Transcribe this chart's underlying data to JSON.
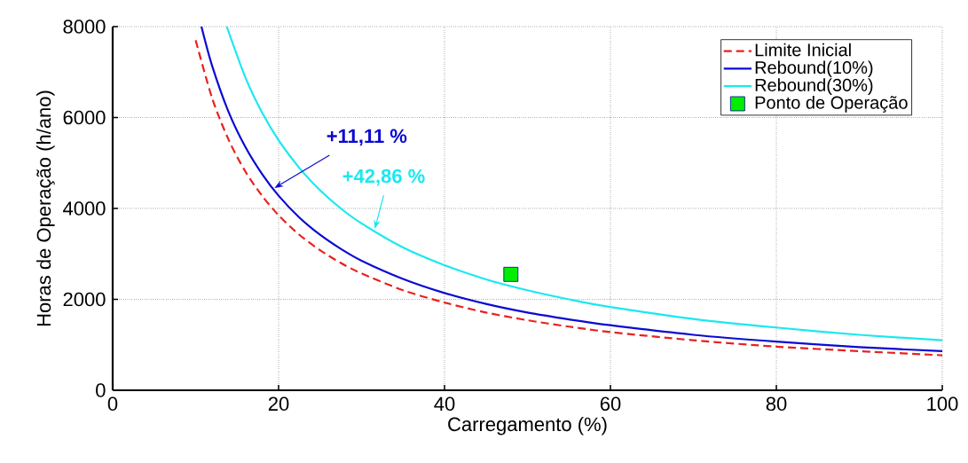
{
  "chart_data": {
    "type": "line",
    "xlabel": "Carregamento (%)",
    "ylabel": "Horas de Operação (h/ano)",
    "xlim": [
      0,
      100
    ],
    "ylim": [
      0,
      8000
    ],
    "xticks": [
      0,
      20,
      40,
      60,
      80,
      100
    ],
    "yticks": [
      0,
      2000,
      4000,
      6000,
      8000
    ],
    "grid": true,
    "legend": "top right",
    "series": [
      {
        "name": "Limite Inicial",
        "color": "#e8221e",
        "line_style": "dashed",
        "marker": "none",
        "x": [
          10,
          12,
          14,
          16,
          18,
          20,
          22.5,
          25,
          27.5,
          30,
          35,
          40,
          45,
          50,
          55,
          60,
          70,
          80,
          90,
          100
        ],
        "values": [
          7700,
          6420,
          5500,
          4810,
          4280,
          3850,
          3420,
          3080,
          2800,
          2570,
          2200,
          1930,
          1710,
          1540,
          1400,
          1280,
          1100,
          960,
          860,
          770
        ]
      },
      {
        "name": "Rebound(10%)",
        "color": "#0a0ad2",
        "line_style": "solid",
        "marker": "none",
        "x": [
          10.7,
          12,
          14,
          16,
          18,
          20,
          22.5,
          25,
          27.5,
          30,
          35,
          40,
          45,
          50,
          55,
          60,
          70,
          80,
          90,
          100
        ],
        "values": [
          8000,
          7130,
          6110,
          5350,
          4760,
          4280,
          3800,
          3420,
          3110,
          2850,
          2450,
          2140,
          1900,
          1710,
          1560,
          1430,
          1220,
          1070,
          950,
          860
        ]
      },
      {
        "name": "Rebound(30%)",
        "color": "#1ae8f0",
        "line_style": "solid",
        "marker": "none",
        "x": [
          13.75,
          16,
          18,
          20,
          22.5,
          25,
          27.5,
          30,
          35,
          40,
          45,
          50,
          55,
          60,
          70,
          80,
          90,
          100
        ],
        "values": [
          8000,
          6880,
          6110,
          5500,
          4890,
          4400,
          4000,
          3670,
          3140,
          2750,
          2440,
          2200,
          2000,
          1830,
          1570,
          1380,
          1220,
          1100
        ]
      },
      {
        "name": "Ponto de Operação",
        "type": "scatter",
        "color": "#00ee00",
        "marker": "square",
        "x": [
          48
        ],
        "values": [
          2550
        ]
      }
    ],
    "annotations": [
      {
        "text": "+11,11 %",
        "x": 19.5,
        "y": 4450
      },
      {
        "text": "+42,86 %",
        "x": 31.6,
        "y": 3550
      }
    ]
  }
}
